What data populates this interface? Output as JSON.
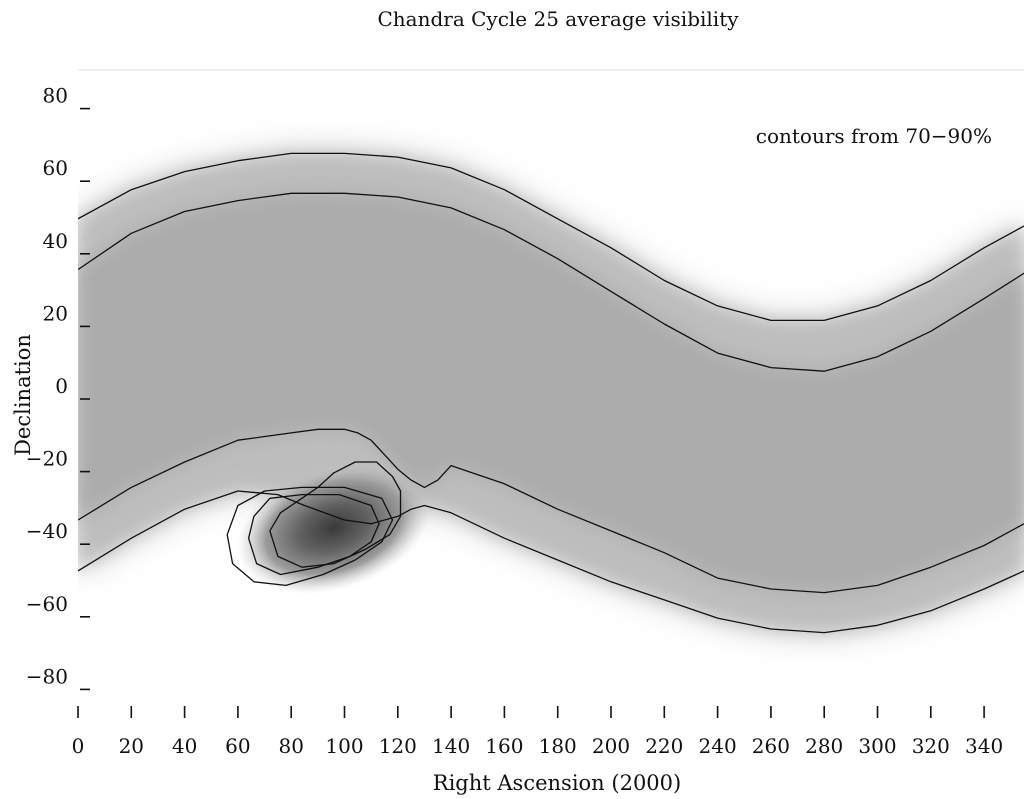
{
  "chart_data": {
    "type": "heatmap",
    "title": "Chandra Cycle 25 average visibility",
    "xlabel": "Right Ascension (2000)",
    "ylabel": "Declination",
    "annotation": "contours from 70−90%",
    "xlim": [
      0,
      355
    ],
    "ylim": [
      -88,
      88
    ],
    "x_ticks": [
      0,
      20,
      40,
      60,
      80,
      100,
      120,
      140,
      160,
      180,
      200,
      220,
      240,
      260,
      280,
      300,
      320,
      340
    ],
    "y_ticks": [
      80,
      60,
      40,
      20,
      0,
      -20,
      -40,
      -60,
      -80
    ],
    "y_tick_labels": [
      "80",
      "60",
      "40",
      "20",
      "0",
      "−20",
      "−40",
      "−60",
      "−80"
    ],
    "contour_levels": [
      70,
      80,
      90
    ],
    "band": {
      "upper_outer": [
        [
          0,
          48
        ],
        [
          20,
          56
        ],
        [
          40,
          61
        ],
        [
          60,
          64
        ],
        [
          80,
          66
        ],
        [
          100,
          66
        ],
        [
          120,
          65
        ],
        [
          140,
          62
        ],
        [
          160,
          56
        ],
        [
          180,
          48
        ],
        [
          200,
          40
        ],
        [
          220,
          31
        ],
        [
          240,
          24
        ],
        [
          260,
          20
        ],
        [
          280,
          20
        ],
        [
          300,
          24
        ],
        [
          320,
          31
        ],
        [
          340,
          40
        ],
        [
          355,
          46
        ]
      ],
      "upper_inner": [
        [
          0,
          34
        ],
        [
          20,
          44
        ],
        [
          40,
          50
        ],
        [
          60,
          53
        ],
        [
          80,
          55
        ],
        [
          100,
          55
        ],
        [
          120,
          54
        ],
        [
          140,
          51
        ],
        [
          160,
          45
        ],
        [
          180,
          37
        ],
        [
          200,
          28
        ],
        [
          220,
          19
        ],
        [
          240,
          11
        ],
        [
          260,
          7
        ],
        [
          280,
          6
        ],
        [
          300,
          10
        ],
        [
          320,
          17
        ],
        [
          340,
          26
        ],
        [
          355,
          33
        ]
      ],
      "lower_inner": [
        [
          0,
          -35
        ],
        [
          20,
          -26
        ],
        [
          40,
          -19
        ],
        [
          60,
          -13
        ],
        [
          80,
          -11
        ],
        [
          90,
          -10
        ],
        [
          100,
          -10
        ],
        [
          105,
          -11
        ],
        [
          110,
          -13
        ],
        [
          115,
          -17
        ],
        [
          120,
          -21
        ],
        [
          125,
          -24
        ],
        [
          130,
          -26
        ],
        [
          135,
          -24
        ],
        [
          140,
          -20
        ],
        [
          160,
          -25
        ],
        [
          180,
          -32
        ],
        [
          200,
          -38
        ],
        [
          220,
          -44
        ],
        [
          240,
          -51
        ],
        [
          260,
          -54
        ],
        [
          280,
          -55
        ],
        [
          300,
          -53
        ],
        [
          320,
          -48
        ],
        [
          340,
          -42
        ],
        [
          355,
          -36
        ]
      ],
      "lower_outer": [
        [
          0,
          -49
        ],
        [
          20,
          -40
        ],
        [
          40,
          -32
        ],
        [
          60,
          -27
        ],
        [
          75,
          -28
        ],
        [
          85,
          -31
        ],
        [
          100,
          -35
        ],
        [
          110,
          -36
        ],
        [
          120,
          -34
        ],
        [
          125,
          -32
        ],
        [
          130,
          -31
        ],
        [
          140,
          -33
        ],
        [
          160,
          -40
        ],
        [
          180,
          -46
        ],
        [
          200,
          -52
        ],
        [
          220,
          -57
        ],
        [
          240,
          -62
        ],
        [
          260,
          -65
        ],
        [
          280,
          -66
        ],
        [
          300,
          -64
        ],
        [
          320,
          -60
        ],
        [
          340,
          -54
        ],
        [
          355,
          -49
        ]
      ]
    },
    "blob": {
      "peak": [
        96,
        -37
      ],
      "contour_70": [
        [
          70,
          -27
        ],
        [
          60,
          -31
        ],
        [
          56,
          -39
        ],
        [
          58,
          -47
        ],
        [
          66,
          -52
        ],
        [
          78,
          -53
        ],
        [
          92,
          -50
        ],
        [
          104,
          -46
        ],
        [
          114,
          -41
        ],
        [
          118,
          -35
        ],
        [
          114,
          -29
        ],
        [
          100,
          -26
        ],
        [
          84,
          -26
        ],
        [
          70,
          -27
        ]
      ],
      "contour_80": [
        [
          72,
          -29
        ],
        [
          66,
          -34
        ],
        [
          64,
          -40
        ],
        [
          67,
          -47
        ],
        [
          76,
          -50
        ],
        [
          90,
          -48
        ],
        [
          102,
          -45
        ],
        [
          110,
          -41
        ],
        [
          113,
          -36
        ],
        [
          110,
          -31
        ],
        [
          98,
          -28
        ],
        [
          84,
          -28
        ],
        [
          72,
          -29
        ]
      ],
      "contour_90": [
        [
          84,
          -29
        ],
        [
          76,
          -33
        ],
        [
          72,
          -38
        ],
        [
          75,
          -45
        ],
        [
          84,
          -48
        ],
        [
          96,
          -47
        ],
        [
          108,
          -43
        ],
        [
          117,
          -39
        ],
        [
          121,
          -34
        ],
        [
          121,
          -27
        ],
        [
          118,
          -23
        ],
        [
          112,
          -19
        ],
        [
          104,
          -19
        ],
        [
          96,
          -22
        ],
        [
          90,
          -26
        ],
        [
          84,
          -29
        ]
      ]
    }
  }
}
